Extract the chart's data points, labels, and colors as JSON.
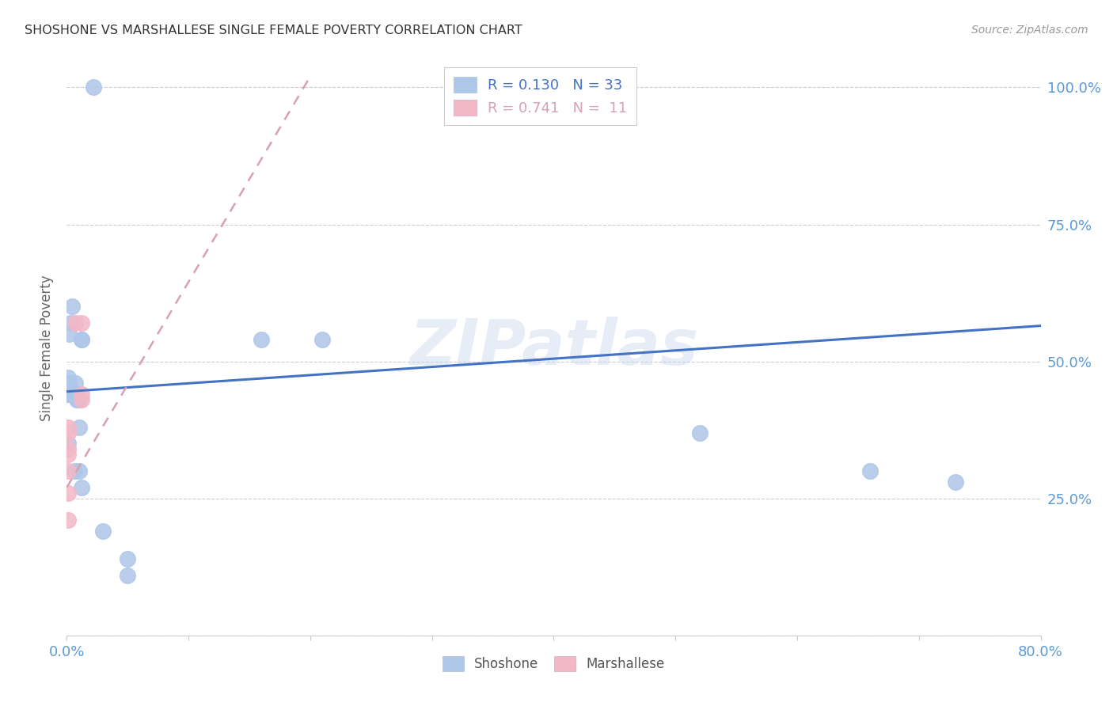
{
  "title": "SHOSHONE VS MARSHALLESE SINGLE FEMALE POVERTY CORRELATION CHART",
  "source": "Source: ZipAtlas.com",
  "ylabel_label": "Single Female Poverty",
  "xlim": [
    0.0,
    0.8
  ],
  "ylim": [
    0.0,
    1.05
  ],
  "xtick_positions": [
    0.0,
    0.1,
    0.2,
    0.3,
    0.4,
    0.5,
    0.6,
    0.7,
    0.8
  ],
  "xticklabels": [
    "0.0%",
    "",
    "",
    "",
    "",
    "",
    "",
    "",
    "80.0%"
  ],
  "ytick_positions": [
    0.0,
    0.25,
    0.5,
    0.75,
    1.0
  ],
  "yticklabels_right": [
    "",
    "25.0%",
    "50.0%",
    "75.0%",
    "100.0%"
  ],
  "watermark": "ZIPatlas",
  "shoshone_R": "0.130",
  "shoshone_N": "33",
  "marshallese_R": "0.741",
  "marshallese_N": "11",
  "shoshone_color": "#aec6e8",
  "marshallese_color": "#f2b8c6",
  "shoshone_line_color": "#4472c4",
  "marshallese_line_color": "#d9a0b0",
  "shoshone_points_x": [
    0.022,
    0.004,
    0.003,
    0.002,
    0.001,
    0.001,
    0.001,
    0.001,
    0.001,
    0.001,
    0.002,
    0.003,
    0.004,
    0.005,
    0.006,
    0.006,
    0.007,
    0.008,
    0.009,
    0.01,
    0.01,
    0.01,
    0.012,
    0.012,
    0.012,
    0.16,
    0.21,
    0.03,
    0.05,
    0.05,
    0.52,
    0.66,
    0.73
  ],
  "shoshone_points_y": [
    1.0,
    0.6,
    0.57,
    0.55,
    0.47,
    0.46,
    0.45,
    0.44,
    0.44,
    0.35,
    0.46,
    0.45,
    0.44,
    0.44,
    0.44,
    0.3,
    0.46,
    0.43,
    0.43,
    0.43,
    0.38,
    0.3,
    0.54,
    0.54,
    0.27,
    0.54,
    0.54,
    0.19,
    0.14,
    0.11,
    0.37,
    0.3,
    0.28
  ],
  "marshallese_points_x": [
    0.001,
    0.001,
    0.001,
    0.001,
    0.001,
    0.001,
    0.001,
    0.007,
    0.012,
    0.012,
    0.012
  ],
  "marshallese_points_y": [
    0.38,
    0.37,
    0.34,
    0.33,
    0.3,
    0.26,
    0.21,
    0.57,
    0.57,
    0.44,
    0.43
  ],
  "shoshone_trend_x": [
    0.0,
    0.8
  ],
  "shoshone_trend_y": [
    0.445,
    0.565
  ],
  "marshallese_trend_x": [
    0.0,
    0.2
  ],
  "marshallese_trend_y": [
    0.27,
    1.02
  ],
  "background_color": "#ffffff",
  "grid_color": "#cccccc"
}
